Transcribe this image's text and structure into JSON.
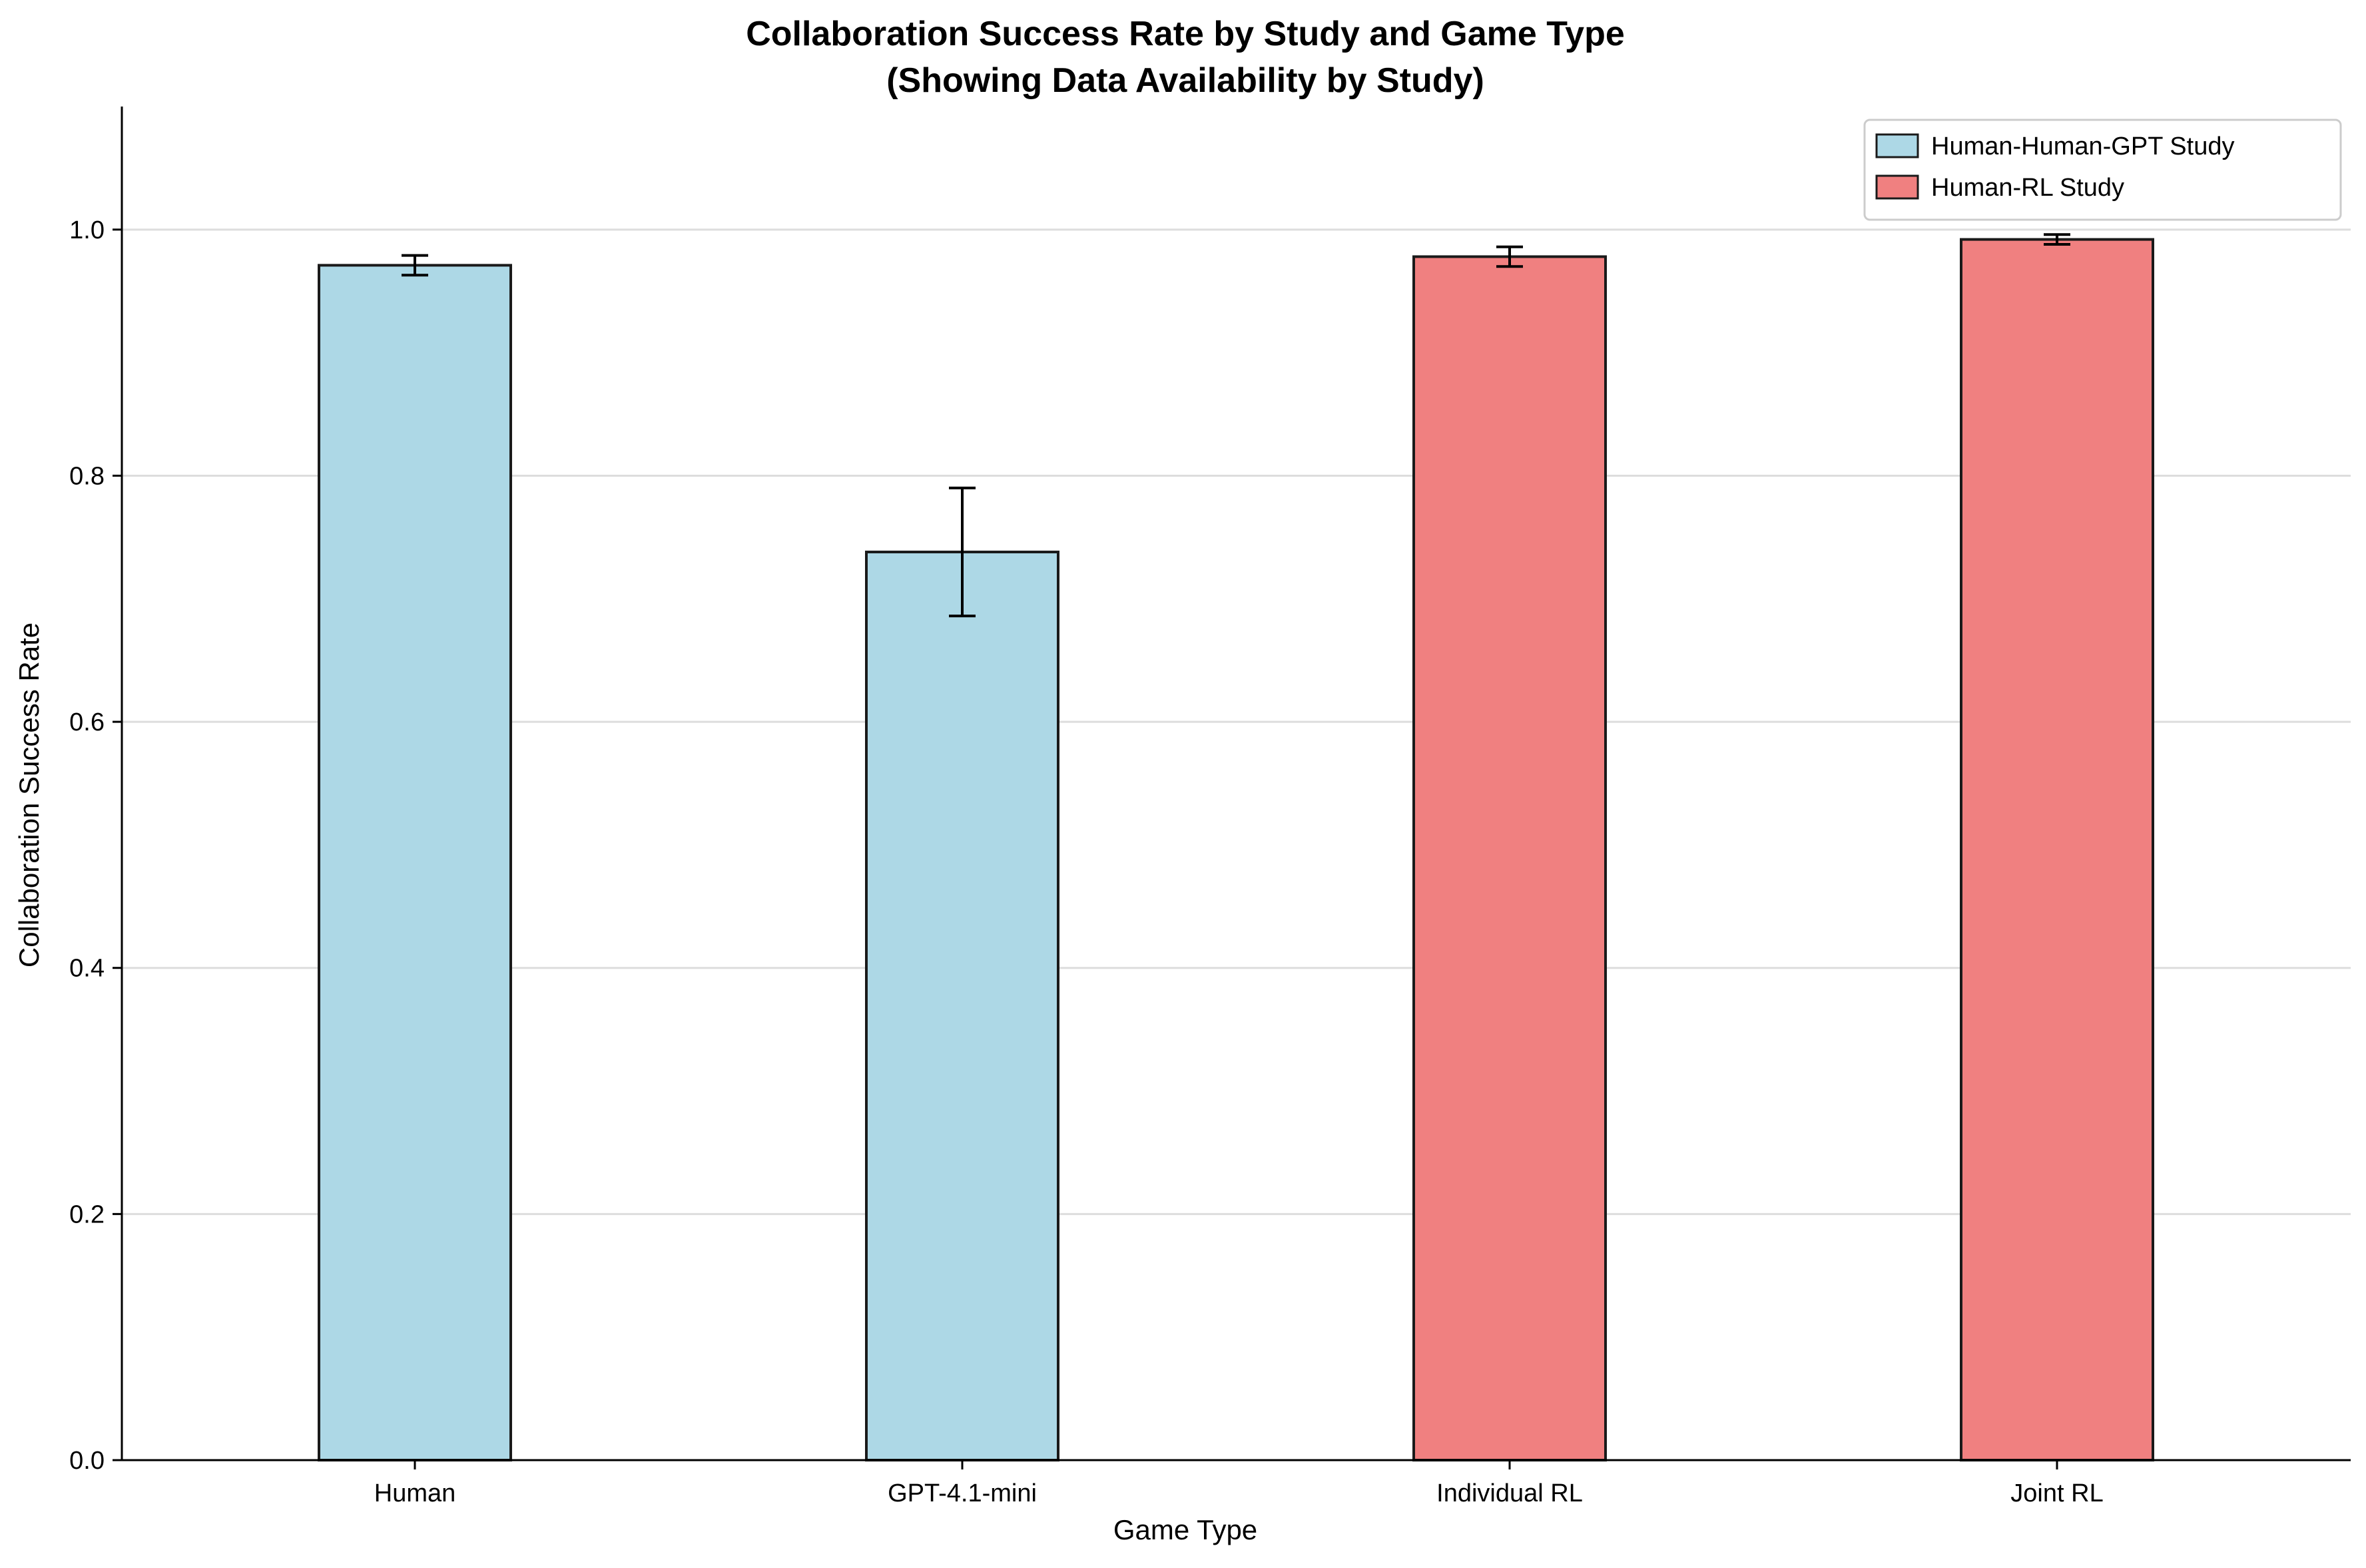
{
  "chart_data": {
    "type": "bar",
    "title": "Collaboration Success Rate by Study and Game Type",
    "subtitle": "(Showing Data Availability by Study)",
    "xlabel": "Game Type",
    "ylabel": "Collaboration Success Rate",
    "categories": [
      "Human",
      "GPT-4.1-mini",
      "Individual RL",
      "Joint RL"
    ],
    "series": [
      {
        "name": "Human-Human-GPT Study",
        "color": "#add8e6",
        "values": [
          0.971,
          0.738,
          null,
          null
        ],
        "errors": [
          0.008,
          0.052,
          null,
          null
        ]
      },
      {
        "name": "Human-RL Study",
        "color": "#f08080",
        "values": [
          null,
          null,
          0.978,
          0.992
        ],
        "errors": [
          null,
          null,
          0.008,
          0.004
        ]
      }
    ],
    "ylim": [
      0,
      1.1
    ],
    "yticks": [
      "0.0",
      "0.2",
      "0.4",
      "0.6",
      "0.8",
      "1.0"
    ],
    "grid": "horizontal",
    "legend": "top-right"
  }
}
